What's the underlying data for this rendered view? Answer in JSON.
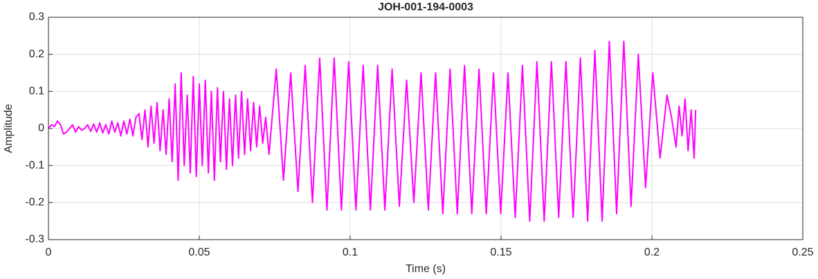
{
  "chart_data": {
    "type": "line",
    "title": "JOH-001-194-0003",
    "xlabel": "Time (s)",
    "ylabel": "Amplitude",
    "xlim": [
      0,
      0.25
    ],
    "xticks": [
      0,
      0.05,
      0.1,
      0.15,
      0.2,
      0.25
    ],
    "ylim": [
      -0.3,
      0.3
    ],
    "yticks": [
      -0.3,
      -0.2,
      -0.1,
      0,
      0.1,
      0.2,
      0.3
    ],
    "grid": true,
    "x": [
      0,
      0.001,
      0.002,
      0.003,
      0.004,
      0.005,
      0.006,
      0.007,
      0.008,
      0.009,
      0.01,
      0.011,
      0.012,
      0.013,
      0.014,
      0.015,
      0.016,
      0.017,
      0.018,
      0.019,
      0.02,
      0.021,
      0.022,
      0.023,
      0.024,
      0.025,
      0.026,
      0.027,
      0.028,
      0.029,
      0.03,
      0.031,
      0.032,
      0.033,
      0.034,
      0.035,
      0.036,
      0.037,
      0.038,
      0.039,
      0.04,
      0.041,
      0.042,
      0.043,
      0.044,
      0.045,
      0.046,
      0.047,
      0.048,
      0.049,
      0.05,
      0.051,
      0.052,
      0.053,
      0.054,
      0.055,
      0.056,
      0.057,
      0.058,
      0.059,
      0.06,
      0.061,
      0.062,
      0.063,
      0.064,
      0.065,
      0.066,
      0.067,
      0.068,
      0.069,
      0.07,
      0.071,
      0.072,
      0.0731,
      0.0755,
      0.0779,
      0.0803,
      0.0827,
      0.0851,
      0.0875,
      0.0899,
      0.0923,
      0.0947,
      0.0971,
      0.0995,
      0.1019,
      0.1043,
      0.1067,
      0.1091,
      0.1115,
      0.1139,
      0.1163,
      0.1187,
      0.1211,
      0.1235,
      0.1259,
      0.1283,
      0.1307,
      0.1331,
      0.1355,
      0.1379,
      0.1403,
      0.1427,
      0.1451,
      0.1475,
      0.1499,
      0.1523,
      0.1547,
      0.1571,
      0.1595,
      0.1619,
      0.1643,
      0.1667,
      0.1691,
      0.1715,
      0.1739,
      0.1763,
      0.1787,
      0.1811,
      0.1835,
      0.1859,
      0.1883,
      0.1907,
      0.1931,
      0.1955,
      0.1979,
      0.2003,
      0.2027,
      0.205,
      0.2065,
      0.208,
      0.209,
      0.21,
      0.211,
      0.212,
      0.213,
      0.214,
      0.2145
    ],
    "series": [
      {
        "color": "#ff00ff",
        "values": [
          0,
          0.01,
          0.005,
          0.02,
          0.01,
          -0.015,
          -0.01,
          0,
          0.01,
          -0.01,
          0.005,
          -0.005,
          0,
          0.01,
          -0.008,
          0.012,
          -0.01,
          0.015,
          -0.012,
          0.01,
          -0.015,
          0.02,
          -0.01,
          0.015,
          -0.02,
          0.02,
          -0.015,
          0.025,
          -0.02,
          0.03,
          0.04,
          -0.03,
          0.05,
          -0.05,
          0.06,
          -0.04,
          0.07,
          -0.06,
          0.05,
          -0.07,
          0.08,
          -0.09,
          0.12,
          -0.14,
          0.15,
          -0.1,
          0.09,
          -0.12,
          0.14,
          -0.13,
          0.12,
          -0.1,
          0.13,
          -0.12,
          0.1,
          -0.14,
          0.11,
          -0.09,
          0.1,
          -0.11,
          0.08,
          -0.1,
          0.09,
          -0.08,
          0.1,
          -0.07,
          0.08,
          -0.06,
          0.07,
          -0.05,
          0.06,
          -0.04,
          0.03,
          -0.07,
          0.16,
          -0.14,
          0.15,
          -0.17,
          0.17,
          -0.2,
          0.19,
          -0.22,
          0.19,
          -0.22,
          0.18,
          -0.22,
          0.17,
          -0.22,
          0.17,
          -0.22,
          0.16,
          -0.21,
          0.13,
          -0.2,
          0.15,
          -0.22,
          0.15,
          -0.23,
          0.16,
          -0.23,
          0.17,
          -0.23,
          0.16,
          -0.23,
          0.15,
          -0.23,
          0.15,
          -0.24,
          0.17,
          -0.25,
          0.18,
          -0.25,
          0.18,
          -0.24,
          0.18,
          -0.24,
          0.19,
          -0.25,
          0.21,
          -0.25,
          0.235,
          -0.23,
          0.235,
          -0.21,
          0.2,
          -0.16,
          0.15,
          -0.08,
          0.09,
          0.03,
          -0.05,
          0.06,
          -0.02,
          0.08,
          -0.06,
          0.05,
          -0.08,
          0.05
        ]
      }
    ]
  }
}
